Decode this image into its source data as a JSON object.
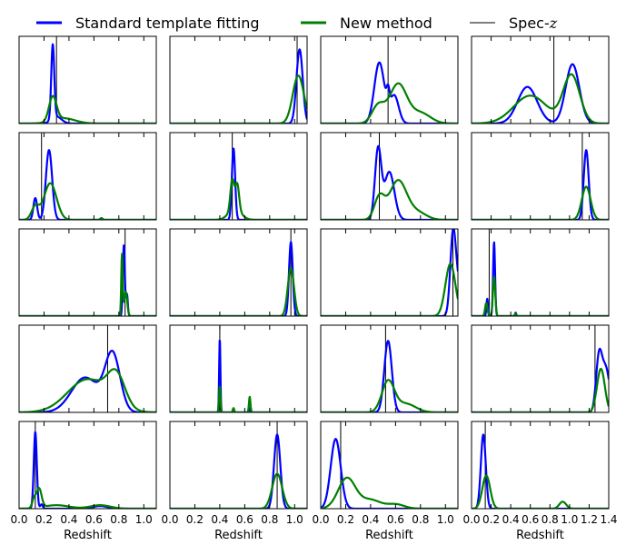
{
  "chart_data": {
    "type": "line",
    "layout": "5 rows x 4 columns of small panels",
    "legend": {
      "placement": "top",
      "entries": [
        {
          "label": "Standard template fitting",
          "color": "#0000ff",
          "style": "line"
        },
        {
          "label": "New method",
          "color": "#008000",
          "style": "line"
        },
        {
          "label": "Spec-",
          "label_math": "z",
          "color": "#000000",
          "style": "thin vertical line"
        }
      ]
    },
    "columns": [
      {
        "xlabel": "Redshift",
        "xlim": [
          0.0,
          1.1
        ],
        "xticks": [
          0.0,
          0.2,
          0.4,
          0.6,
          0.8,
          1.0
        ],
        "xticklabels": [
          "0.0",
          "0.2",
          "0.4",
          "0.6",
          "0.8",
          "1.0"
        ]
      },
      {
        "xlabel": "Redshift",
        "xlim": [
          0.0,
          1.1
        ],
        "xticks": [
          0.0,
          0.2,
          0.4,
          0.6,
          0.8,
          1.0
        ],
        "xticklabels": [
          "0.0",
          "0.2",
          "0.4",
          "0.6",
          "0.8",
          "1.0"
        ]
      },
      {
        "xlabel": "Redshift",
        "xlim": [
          0.0,
          1.1
        ],
        "xticks": [
          0.0,
          0.2,
          0.4,
          0.6,
          0.8,
          1.0
        ],
        "xticklabels": [
          "0.0",
          "0.2",
          "0.4",
          "0.6",
          "0.8",
          "1.0"
        ]
      },
      {
        "xlabel": "Redshift",
        "xlim": [
          0.0,
          1.4
        ],
        "xticks": [
          0.0,
          0.2,
          0.4,
          0.6,
          0.8,
          1.0,
          1.2,
          1.4
        ],
        "xticklabels": [
          "0.0",
          "0.2",
          "0.4",
          "0.6",
          "0.8",
          "1.0",
          "1.2",
          "1.4"
        ]
      }
    ],
    "panels": [
      {
        "row": 0,
        "col": 0,
        "specz": 0.3,
        "ymax": 1.0,
        "series": [
          {
            "name": "Standard template fitting",
            "peaks": [
              {
                "mu": 0.27,
                "sigma": 0.012,
                "amp": 0.85
              },
              {
                "mu": 0.3,
                "sigma": 0.04,
                "amp": 0.08
              }
            ]
          },
          {
            "name": "New method",
            "peaks": [
              {
                "mu": 0.27,
                "sigma": 0.03,
                "amp": 0.28
              },
              {
                "mu": 0.36,
                "sigma": 0.09,
                "amp": 0.06
              }
            ]
          }
        ]
      },
      {
        "row": 0,
        "col": 1,
        "specz": 1.02,
        "ymax": 1.0,
        "series": [
          {
            "name": "Standard template fitting",
            "peaks": [
              {
                "mu": 1.04,
                "sigma": 0.025,
                "amp": 0.85
              }
            ]
          },
          {
            "name": "New method",
            "peaks": [
              {
                "mu": 1.03,
                "sigma": 0.045,
                "amp": 0.55
              }
            ]
          }
        ]
      },
      {
        "row": 0,
        "col": 2,
        "specz": 0.54,
        "ymax": 1.0,
        "series": [
          {
            "name": "Standard template fitting",
            "peaks": [
              {
                "mu": 0.47,
                "sigma": 0.04,
                "amp": 0.7
              },
              {
                "mu": 0.54,
                "sigma": 0.012,
                "amp": 0.18
              },
              {
                "mu": 0.59,
                "sigma": 0.035,
                "amp": 0.32
              }
            ]
          },
          {
            "name": "New method",
            "peaks": [
              {
                "mu": 0.46,
                "sigma": 0.05,
                "amp": 0.2
              },
              {
                "mu": 0.62,
                "sigma": 0.07,
                "amp": 0.45
              },
              {
                "mu": 0.8,
                "sigma": 0.08,
                "amp": 0.12
              }
            ]
          }
        ]
      },
      {
        "row": 0,
        "col": 3,
        "specz": 0.84,
        "ymax": 1.0,
        "series": [
          {
            "name": "Standard template fitting",
            "peaks": [
              {
                "mu": 0.57,
                "sigma": 0.1,
                "amp": 0.42
              },
              {
                "mu": 1.03,
                "sigma": 0.07,
                "amp": 0.68
              }
            ]
          },
          {
            "name": "New method",
            "peaks": [
              {
                "mu": 0.6,
                "sigma": 0.17,
                "amp": 0.32
              },
              {
                "mu": 1.02,
                "sigma": 0.085,
                "amp": 0.55
              }
            ]
          }
        ]
      },
      {
        "row": 1,
        "col": 0,
        "specz": 0.18,
        "ymax": 1.0,
        "series": [
          {
            "name": "Standard template fitting",
            "peaks": [
              {
                "mu": 0.13,
                "sigma": 0.015,
                "amp": 0.25
              },
              {
                "mu": 0.24,
                "sigma": 0.025,
                "amp": 0.8
              }
            ]
          },
          {
            "name": "New method",
            "peaks": [
              {
                "mu": 0.13,
                "sigma": 0.03,
                "amp": 0.15
              },
              {
                "mu": 0.25,
                "sigma": 0.05,
                "amp": 0.42
              },
              {
                "mu": 0.66,
                "sigma": 0.01,
                "amp": 0.02
              }
            ]
          }
        ]
      },
      {
        "row": 1,
        "col": 1,
        "specz": 0.5,
        "ymax": 1.0,
        "series": [
          {
            "name": "Standard template fitting",
            "peaks": [
              {
                "mu": 0.51,
                "sigma": 0.013,
                "amp": 0.82
              }
            ]
          },
          {
            "name": "New method",
            "peaks": [
              {
                "mu": 0.5,
                "sigma": 0.015,
                "amp": 0.35
              },
              {
                "mu": 0.54,
                "sigma": 0.015,
                "amp": 0.3
              },
              {
                "mu": 0.52,
                "sigma": 0.05,
                "amp": 0.12
              }
            ]
          }
        ]
      },
      {
        "row": 1,
        "col": 2,
        "specz": 0.47,
        "ymax": 1.0,
        "series": [
          {
            "name": "Standard template fitting",
            "peaks": [
              {
                "mu": 0.46,
                "sigma": 0.025,
                "amp": 0.8
              },
              {
                "mu": 0.55,
                "sigma": 0.04,
                "amp": 0.55
              }
            ]
          },
          {
            "name": "New method",
            "peaks": [
              {
                "mu": 0.47,
                "sigma": 0.04,
                "amp": 0.25
              },
              {
                "mu": 0.62,
                "sigma": 0.07,
                "amp": 0.45
              },
              {
                "mu": 0.78,
                "sigma": 0.07,
                "amp": 0.08
              }
            ]
          }
        ]
      },
      {
        "row": 1,
        "col": 3,
        "specz": 1.13,
        "ymax": 1.0,
        "series": [
          {
            "name": "Standard template fitting",
            "peaks": [
              {
                "mu": 1.17,
                "sigma": 0.025,
                "amp": 0.8
              }
            ]
          },
          {
            "name": "New method",
            "peaks": [
              {
                "mu": 1.17,
                "sigma": 0.045,
                "amp": 0.38
              }
            ]
          }
        ]
      },
      {
        "row": 2,
        "col": 0,
        "specz": 0.85,
        "ymax": 1.0,
        "series": [
          {
            "name": "Standard template fitting",
            "peaks": [
              {
                "mu": 0.84,
                "sigma": 0.008,
                "amp": 0.82
              },
              {
                "mu": 0.865,
                "sigma": 0.007,
                "amp": 0.25
              }
            ]
          },
          {
            "name": "New method",
            "peaks": [
              {
                "mu": 0.825,
                "sigma": 0.006,
                "amp": 0.7
              },
              {
                "mu": 0.855,
                "sigma": 0.012,
                "amp": 0.28
              }
            ]
          }
        ]
      },
      {
        "row": 2,
        "col": 1,
        "specz": 0.97,
        "ymax": 1.0,
        "series": [
          {
            "name": "Standard template fitting",
            "peaks": [
              {
                "mu": 0.97,
                "sigma": 0.015,
                "amp": 0.85
              }
            ]
          },
          {
            "name": "New method",
            "peaks": [
              {
                "mu": 0.97,
                "sigma": 0.025,
                "amp": 0.55
              }
            ]
          }
        ]
      },
      {
        "row": 2,
        "col": 2,
        "specz": 1.06,
        "ymax": 1.0,
        "series": [
          {
            "name": "Standard template fitting",
            "peaks": [
              {
                "mu": 1.06,
                "sigma": 0.022,
                "amp": 0.85
              },
              {
                "mu": 1.1,
                "sigma": 0.03,
                "amp": 0.35
              }
            ]
          },
          {
            "name": "New method",
            "peaks": [
              {
                "mu": 1.04,
                "sigma": 0.04,
                "amp": 0.6
              }
            ]
          }
        ]
      },
      {
        "row": 2,
        "col": 3,
        "specz": 0.18,
        "ymax": 1.0,
        "series": [
          {
            "name": "Standard template fitting",
            "peaks": [
              {
                "mu": 0.16,
                "sigma": 0.008,
                "amp": 0.2
              },
              {
                "mu": 0.23,
                "sigma": 0.01,
                "amp": 0.85
              },
              {
                "mu": 0.45,
                "sigma": 0.006,
                "amp": 0.04
              }
            ]
          },
          {
            "name": "New method",
            "peaks": [
              {
                "mu": 0.15,
                "sigma": 0.012,
                "amp": 0.15
              },
              {
                "mu": 0.23,
                "sigma": 0.012,
                "amp": 0.45
              },
              {
                "mu": 0.45,
                "sigma": 0.008,
                "amp": 0.03
              }
            ]
          }
        ]
      },
      {
        "row": 3,
        "col": 0,
        "specz": 0.71,
        "ymax": 1.0,
        "series": [
          {
            "name": "Standard template fitting",
            "peaks": [
              {
                "mu": 0.53,
                "sigma": 0.11,
                "amp": 0.4
              },
              {
                "mu": 0.75,
                "sigma": 0.06,
                "amp": 0.65
              }
            ]
          },
          {
            "name": "New method",
            "peaks": [
              {
                "mu": 0.55,
                "sigma": 0.16,
                "amp": 0.38
              },
              {
                "mu": 0.78,
                "sigma": 0.07,
                "amp": 0.35
              }
            ]
          }
        ]
      },
      {
        "row": 3,
        "col": 1,
        "specz": 0.4,
        "ymax": 1.0,
        "series": [
          {
            "name": "Standard template fitting",
            "peaks": [
              {
                "mu": 0.4,
                "sigma": 0.005,
                "amp": 0.85
              },
              {
                "mu": 0.64,
                "sigma": 0.005,
                "amp": 0.05
              }
            ]
          },
          {
            "name": "New method",
            "peaks": [
              {
                "mu": 0.4,
                "sigma": 0.006,
                "amp": 0.3
              },
              {
                "mu": 0.51,
                "sigma": 0.006,
                "amp": 0.05
              },
              {
                "mu": 0.64,
                "sigma": 0.006,
                "amp": 0.18
              }
            ]
          }
        ]
      },
      {
        "row": 3,
        "col": 2,
        "specz": 0.52,
        "ymax": 1.0,
        "series": [
          {
            "name": "Standard template fitting",
            "peaks": [
              {
                "mu": 0.54,
                "sigma": 0.03,
                "amp": 0.82
              }
            ]
          },
          {
            "name": "New method",
            "peaks": [
              {
                "mu": 0.54,
                "sigma": 0.05,
                "amp": 0.35
              },
              {
                "mu": 0.68,
                "sigma": 0.08,
                "amp": 0.1
              }
            ]
          }
        ]
      },
      {
        "row": 3,
        "col": 3,
        "specz": 1.26,
        "ymax": 1.0,
        "series": [
          {
            "name": "Standard template fitting",
            "peaks": [
              {
                "mu": 1.3,
                "sigma": 0.03,
                "amp": 0.6
              },
              {
                "mu": 1.37,
                "sigma": 0.04,
                "amp": 0.5
              }
            ]
          },
          {
            "name": "New method",
            "peaks": [
              {
                "mu": 1.32,
                "sigma": 0.04,
                "amp": 0.5
              }
            ]
          }
        ]
      },
      {
        "row": 4,
        "col": 0,
        "specz": 0.13,
        "ymax": 1.0,
        "series": [
          {
            "name": "Standard template fitting",
            "peaks": [
              {
                "mu": 0.13,
                "sigma": 0.012,
                "amp": 0.88
              },
              {
                "mu": 0.18,
                "sigma": 0.01,
                "amp": 0.05
              },
              {
                "mu": 0.65,
                "sigma": 0.06,
                "amp": 0.03
              }
            ]
          },
          {
            "name": "New method",
            "peaks": [
              {
                "mu": 0.12,
                "sigma": 0.015,
                "amp": 0.1
              },
              {
                "mu": 0.16,
                "sigma": 0.02,
                "amp": 0.22
              },
              {
                "mu": 0.3,
                "sigma": 0.1,
                "amp": 0.04
              },
              {
                "mu": 0.65,
                "sigma": 0.08,
                "amp": 0.04
              }
            ]
          }
        ]
      },
      {
        "row": 4,
        "col": 1,
        "specz": 0.86,
        "ymax": 1.0,
        "series": [
          {
            "name": "Standard template fitting",
            "peaks": [
              {
                "mu": 0.86,
                "sigma": 0.025,
                "amp": 0.85
              }
            ]
          },
          {
            "name": "New method",
            "peaks": [
              {
                "mu": 0.86,
                "sigma": 0.04,
                "amp": 0.4
              }
            ]
          }
        ]
      },
      {
        "row": 4,
        "col": 2,
        "specz": 0.16,
        "ymax": 1.0,
        "series": [
          {
            "name": "Standard template fitting",
            "peaks": [
              {
                "mu": 0.12,
                "sigma": 0.04,
                "amp": 0.8
              }
            ]
          },
          {
            "name": "New method",
            "peaks": [
              {
                "mu": 0.21,
                "sigma": 0.07,
                "amp": 0.35
              },
              {
                "mu": 0.4,
                "sigma": 0.08,
                "amp": 0.1
              },
              {
                "mu": 0.6,
                "sigma": 0.07,
                "amp": 0.05
              }
            ]
          }
        ]
      },
      {
        "row": 4,
        "col": 3,
        "specz": 0.14,
        "ymax": 1.0,
        "series": [
          {
            "name": "Standard template fitting",
            "peaks": [
              {
                "mu": 0.12,
                "sigma": 0.025,
                "amp": 0.85
              }
            ]
          },
          {
            "name": "New method",
            "peaks": [
              {
                "mu": 0.15,
                "sigma": 0.04,
                "amp": 0.38
              },
              {
                "mu": 0.93,
                "sigma": 0.035,
                "amp": 0.08
              }
            ]
          }
        ]
      }
    ]
  }
}
